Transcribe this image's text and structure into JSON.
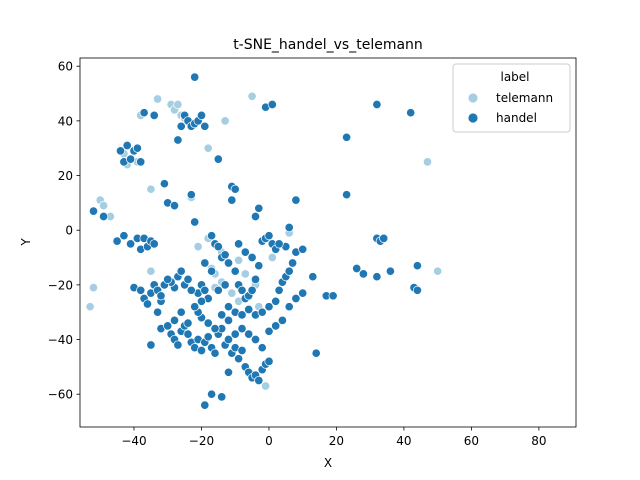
{
  "chart_data": {
    "type": "scatter",
    "title": "t-SNE_handel_vs_telemann",
    "xlabel": "X",
    "ylabel": "Y",
    "xlim": [
      -56,
      91
    ],
    "ylim": [
      -72,
      63
    ],
    "xticks": [
      -40,
      -20,
      0,
      20,
      40,
      60,
      80
    ],
    "yticks": [
      -60,
      -40,
      -20,
      0,
      20,
      40,
      60
    ],
    "xtick_labels": [
      "−40",
      "−20",
      "0",
      "20",
      "40",
      "60",
      "80"
    ],
    "ytick_labels": [
      "−60",
      "−40",
      "−20",
      "0",
      "20",
      "40",
      "60"
    ],
    "grid": false,
    "legend_position": "top-right",
    "legend_title": "label",
    "colors": {
      "telemann": "#a6cee3",
      "handel": "#1f78b4"
    },
    "series": [
      {
        "name": "telemann",
        "points": [
          [
            -53,
            -28
          ],
          [
            -52,
            -21
          ],
          [
            -50,
            11
          ],
          [
            -49,
            9
          ],
          [
            -47,
            5
          ],
          [
            -39,
            25
          ],
          [
            -38,
            42
          ],
          [
            -35,
            -15
          ],
          [
            -35,
            15
          ],
          [
            -33,
            48
          ],
          [
            -29,
            46
          ],
          [
            -28,
            44
          ],
          [
            -27,
            46
          ],
          [
            -26,
            42
          ],
          [
            -25,
            41
          ],
          [
            -21,
            -6
          ],
          [
            -18,
            -3
          ],
          [
            -18,
            30
          ],
          [
            -17,
            -14
          ],
          [
            -16,
            -16
          ],
          [
            -14,
            -19
          ],
          [
            -13,
            40
          ],
          [
            -11,
            -23
          ],
          [
            -9,
            -26
          ],
          [
            -7,
            -16
          ],
          [
            -5,
            49
          ],
          [
            -4,
            -20
          ],
          [
            -3,
            -28
          ],
          [
            -1,
            -57
          ],
          [
            1,
            -10
          ],
          [
            6,
            -1
          ],
          [
            47,
            25
          ],
          [
            50,
            -15
          ],
          [
            -43,
            28
          ],
          [
            -42,
            24
          ],
          [
            -23,
            12
          ],
          [
            -16,
            -21
          ],
          [
            -12,
            -33
          ],
          [
            -14,
            -8
          ],
          [
            -9,
            -11
          ]
        ]
      },
      {
        "name": "handel",
        "points": [
          [
            -52,
            7
          ],
          [
            -49,
            5
          ],
          [
            -45,
            -4
          ],
          [
            -44,
            29
          ],
          [
            -43,
            25
          ],
          [
            -42,
            31
          ],
          [
            -41,
            26
          ],
          [
            -40,
            29
          ],
          [
            -39,
            30
          ],
          [
            -38,
            25
          ],
          [
            -43,
            -2
          ],
          [
            -41,
            -5
          ],
          [
            -39,
            -3
          ],
          [
            -38,
            -7
          ],
          [
            -37,
            -3
          ],
          [
            -36,
            -6
          ],
          [
            -35,
            -4
          ],
          [
            -34,
            -5
          ],
          [
            -40,
            -21
          ],
          [
            -38,
            -22
          ],
          [
            -37,
            -25
          ],
          [
            -36,
            -27
          ],
          [
            -35,
            -23
          ],
          [
            -34,
            -20
          ],
          [
            -33,
            -22
          ],
          [
            -32,
            -26
          ],
          [
            -37,
            43
          ],
          [
            -34,
            42
          ],
          [
            -31,
            17
          ],
          [
            -30,
            10
          ],
          [
            -28,
            9
          ],
          [
            -27,
            33
          ],
          [
            -26,
            38
          ],
          [
            -25,
            42
          ],
          [
            -24,
            40
          ],
          [
            -23,
            38
          ],
          [
            -22,
            39
          ],
          [
            -21,
            40
          ],
          [
            -20,
            42
          ],
          [
            -19,
            38
          ],
          [
            -22,
            56
          ],
          [
            -23,
            13
          ],
          [
            -22,
            3
          ],
          [
            -21,
            -23
          ],
          [
            -20,
            -20
          ],
          [
            -19,
            -22
          ],
          [
            -18,
            -25
          ],
          [
            -17,
            -2
          ],
          [
            -16,
            -5
          ],
          [
            -15,
            -6
          ],
          [
            -15,
            26
          ],
          [
            -14,
            -10
          ],
          [
            -13,
            -9
          ],
          [
            -12,
            -12
          ],
          [
            -11,
            16
          ],
          [
            -10,
            15
          ],
          [
            -11,
            11
          ],
          [
            -10,
            -15
          ],
          [
            -9,
            -20
          ],
          [
            -8,
            -22
          ],
          [
            -7,
            -25
          ],
          [
            -6,
            -24
          ],
          [
            -5,
            -22
          ],
          [
            -4,
            -18
          ],
          [
            -4,
            5
          ],
          [
            -3,
            8
          ],
          [
            -2,
            -4
          ],
          [
            -1,
            -3
          ],
          [
            0,
            -2
          ],
          [
            1,
            -5
          ],
          [
            2,
            -7
          ],
          [
            -1,
            45
          ],
          [
            1,
            46
          ],
          [
            -25,
            -20
          ],
          [
            -27,
            -17
          ],
          [
            -28,
            -21
          ],
          [
            -29,
            -19
          ],
          [
            -26,
            -15
          ],
          [
            -24,
            -18
          ],
          [
            -23,
            -22
          ],
          [
            -32,
            -36
          ],
          [
            -30,
            -35
          ],
          [
            -29,
            -38
          ],
          [
            -28,
            -40
          ],
          [
            -27,
            -42
          ],
          [
            -26,
            -37
          ],
          [
            -25,
            -35
          ],
          [
            -24,
            -38
          ],
          [
            -23,
            -41
          ],
          [
            -22,
            -43
          ],
          [
            -21,
            -40
          ],
          [
            -20,
            -44
          ],
          [
            -19,
            -41
          ],
          [
            -18,
            -39
          ],
          [
            -17,
            -43
          ],
          [
            -16,
            -45
          ],
          [
            -15,
            -38
          ],
          [
            -14,
            -36
          ],
          [
            -13,
            -42
          ],
          [
            -12,
            -40
          ],
          [
            -11,
            -45
          ],
          [
            -10,
            -43
          ],
          [
            -9,
            -47
          ],
          [
            -8,
            -44
          ],
          [
            -7,
            -50
          ],
          [
            -6,
            -52
          ],
          [
            -5,
            -54
          ],
          [
            -4,
            -53
          ],
          [
            -3,
            -55
          ],
          [
            -2,
            -51
          ],
          [
            -1,
            -49
          ],
          [
            0,
            -48
          ],
          [
            -19,
            -64
          ],
          [
            -17,
            -60
          ],
          [
            -14,
            -61
          ],
          [
            -12,
            -52
          ],
          [
            -20,
            -32
          ],
          [
            -21,
            -30
          ],
          [
            -22,
            -28
          ],
          [
            -20,
            -26
          ],
          [
            -12,
            -28
          ],
          [
            -10,
            -30
          ],
          [
            -8,
            -31
          ],
          [
            -6,
            -29
          ],
          [
            -4,
            -31
          ],
          [
            -2,
            -30
          ],
          [
            0,
            -28
          ],
          [
            2,
            -26
          ],
          [
            3,
            -22
          ],
          [
            4,
            -19
          ],
          [
            5,
            -17
          ],
          [
            6,
            -15
          ],
          [
            7,
            -12
          ],
          [
            8,
            -8
          ],
          [
            10,
            -7
          ],
          [
            6,
            1
          ],
          [
            8,
            11
          ],
          [
            13,
            -17
          ],
          [
            14,
            -45
          ],
          [
            17,
            -24
          ],
          [
            19,
            -24
          ],
          [
            23,
            34
          ],
          [
            23,
            13
          ],
          [
            26,
            -14
          ],
          [
            28,
            -16
          ],
          [
            32,
            -17
          ],
          [
            32,
            -3
          ],
          [
            33,
            -4
          ],
          [
            34,
            -3
          ],
          [
            36,
            -15
          ],
          [
            42,
            43
          ],
          [
            43,
            -21
          ],
          [
            44,
            -22
          ],
          [
            44,
            -13
          ],
          [
            32,
            46
          ],
          [
            -35,
            -42
          ],
          [
            -33,
            -30
          ],
          [
            -32,
            -24
          ],
          [
            -31,
            -20
          ],
          [
            -30,
            -18
          ],
          [
            -28,
            -33
          ],
          [
            -26,
            -30
          ],
          [
            -24,
            -34
          ],
          [
            -18,
            -34
          ],
          [
            -16,
            -36
          ],
          [
            -14,
            -31
          ],
          [
            -12,
            -33
          ],
          [
            -10,
            -38
          ],
          [
            -8,
            -36
          ],
          [
            -6,
            -38
          ],
          [
            -4,
            -40
          ],
          [
            -2,
            -43
          ],
          [
            0,
            -37
          ],
          [
            2,
            -35
          ],
          [
            4,
            -33
          ],
          [
            6,
            -28
          ],
          [
            8,
            -25
          ],
          [
            10,
            -23
          ],
          [
            5,
            -6
          ],
          [
            3,
            -5
          ],
          [
            -13,
            -20
          ],
          [
            -15,
            -22
          ],
          [
            -17,
            -15
          ],
          [
            -19,
            -12
          ],
          [
            -9,
            -5
          ],
          [
            -7,
            -8
          ],
          [
            -5,
            -10
          ],
          [
            -3,
            -13
          ]
        ]
      }
    ]
  }
}
